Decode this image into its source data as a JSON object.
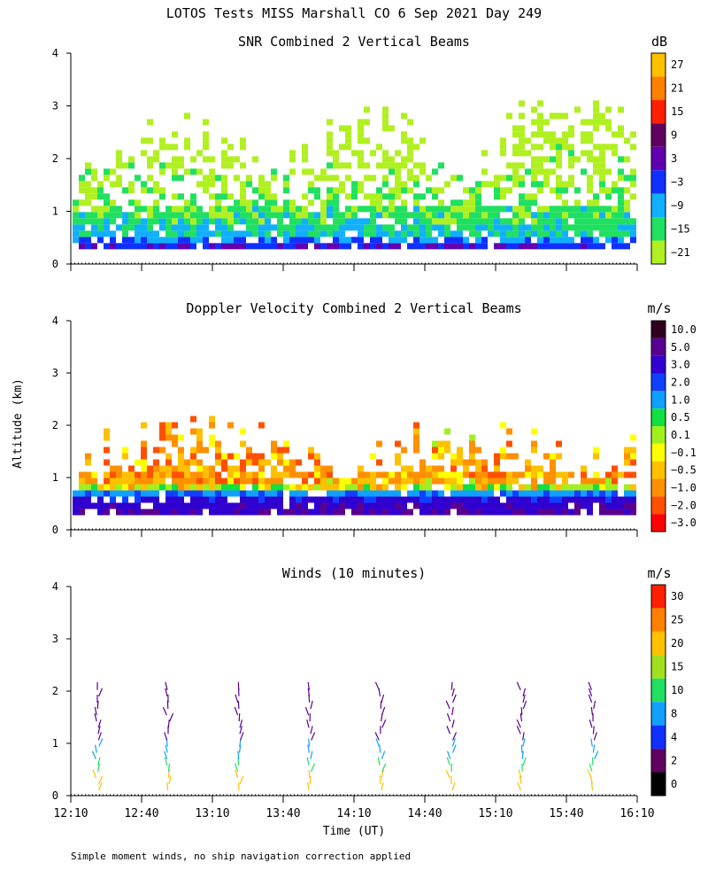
{
  "figure": {
    "title": "LOTOS Tests MISS Marshall CO   6 Sep 2021 Day 249",
    "ylabel": "Altitude (km)",
    "xlabel": "Time (UT)",
    "footnote": "Simple moment winds, no ship navigation correction applied"
  },
  "chart_data": [
    {
      "type": "heatmap",
      "title": "SNR Combined 2 Vertical Beams",
      "units": "dB",
      "xlim": [
        "12:10",
        "16:10"
      ],
      "x_ticks": [
        "12:10",
        "12:40",
        "13:10",
        "13:40",
        "14:10",
        "14:40",
        "15:10",
        "15:40",
        "16:10"
      ],
      "ylim": [
        0,
        4
      ],
      "y_ticks": [
        "0",
        "1",
        "2",
        "3",
        "4"
      ],
      "colorbar": {
        "labels": [
          "27",
          "21",
          "15",
          "9",
          "3",
          "−3",
          "−9",
          "−15",
          "−21"
        ],
        "colors": [
          "#ffc000",
          "#ff8000",
          "#ff2000",
          "#600060",
          "#6000b0",
          "#1030ff",
          "#10b0ff",
          "#20e060",
          "#b0f020"
        ]
      },
      "profile": [
        {
          "alt_km": 0.3,
          "snr_db": 2
        },
        {
          "alt_km": 0.5,
          "snr_db": -8
        },
        {
          "alt_km": 0.8,
          "snr_db": -12
        },
        {
          "alt_km": 1.2,
          "snr_db": -15
        },
        {
          "alt_km": 1.6,
          "snr_db": -18
        },
        {
          "alt_km": 2.2,
          "snr_db": -20
        },
        {
          "alt_km": 2.8,
          "snr_db": -21
        }
      ]
    },
    {
      "type": "heatmap",
      "title": "Doppler Velocity Combined 2 Vertical Beams",
      "units": "m/s",
      "xlim": [
        "12:10",
        "16:10"
      ],
      "x_ticks": [
        "12:10",
        "12:40",
        "13:10",
        "13:40",
        "14:10",
        "14:40",
        "15:10",
        "15:40",
        "16:10"
      ],
      "ylim": [
        0,
        4
      ],
      "y_ticks": [
        "0",
        "1",
        "2",
        "3",
        "4"
      ],
      "colorbar": {
        "labels": [
          "10.0",
          "5.0",
          "3.0",
          "2.0",
          "1.0",
          "0.5",
          "0.1",
          "−0.1",
          "−0.5",
          "−1.0",
          "−2.0",
          "−3.0"
        ],
        "colors": [
          "#300020",
          "#5a0090",
          "#3000d0",
          "#1040ff",
          "#10a0ff",
          "#10e040",
          "#a0f020",
          "#ffff00",
          "#ffc000",
          "#ff9000",
          "#ff5000",
          "#ff0000"
        ]
      },
      "profile": [
        {
          "alt_km": 0.35,
          "velocity_ms": 5.0
        },
        {
          "alt_km": 0.55,
          "velocity_ms": 3.0
        },
        {
          "alt_km": 0.8,
          "velocity_ms": -0.5
        },
        {
          "alt_km": 1.2,
          "velocity_ms": -0.7
        },
        {
          "alt_km": 1.8,
          "velocity_ms": -0.5
        }
      ]
    },
    {
      "type": "scatter",
      "title": "Winds (10 minutes)",
      "units": "m/s",
      "xlim": [
        "12:10",
        "16:10"
      ],
      "x_ticks": [
        "12:10",
        "12:40",
        "13:10",
        "13:40",
        "14:10",
        "14:40",
        "15:10",
        "15:40",
        "16:10"
      ],
      "ylim": [
        0,
        4
      ],
      "y_ticks": [
        "0",
        "1",
        "2",
        "3",
        "4"
      ],
      "colorbar": {
        "labels": [
          "30",
          "25",
          "20",
          "15",
          "10",
          "8",
          "4",
          "2",
          "0"
        ],
        "colors": [
          "#ff2000",
          "#ff8000",
          "#ffc000",
          "#a0e020",
          "#20e060",
          "#10a0ff",
          "#1030ff",
          "#600060",
          "#000000"
        ]
      },
      "profile_times": [
        "12:25",
        "12:55",
        "13:25",
        "13:55",
        "14:25",
        "14:55",
        "15:25",
        "15:55"
      ]
    }
  ]
}
